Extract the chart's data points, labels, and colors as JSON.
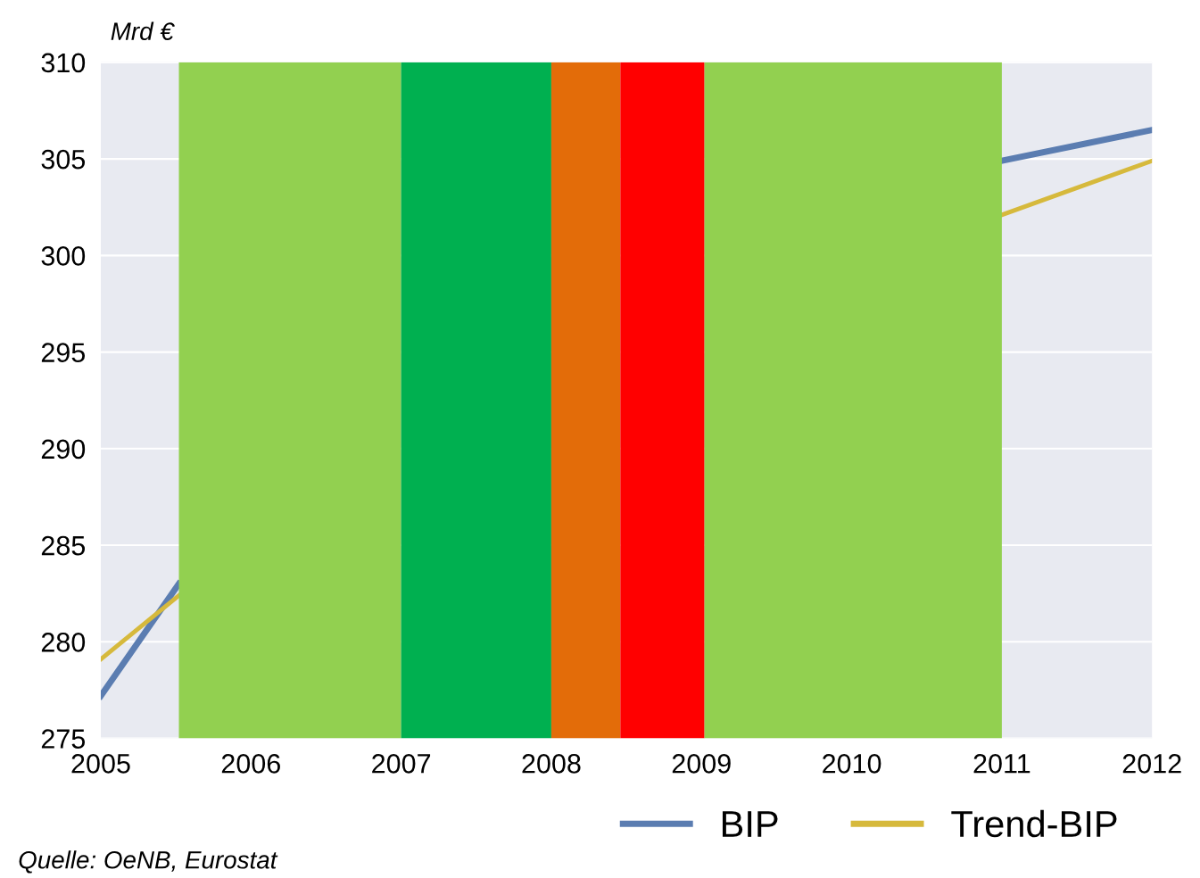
{
  "chart_data": {
    "type": "line",
    "ylabel": "Mrd €",
    "annotations": [
      "Quelle: OeNB, Eurostat"
    ],
    "series": [
      {
        "name": "BIP",
        "color": "#5b7db1",
        "x": [
          2005,
          2005.52,
          2008,
          2011,
          2012
        ],
        "values": [
          277.2,
          283.0,
          null,
          304.9,
          306.5
        ]
      },
      {
        "name": "Trend-BIP",
        "color": "#d6b93c",
        "x": [
          2005,
          2005.52,
          2008,
          2011,
          2012
        ],
        "values": [
          279.1,
          282.4,
          null,
          302.1,
          304.9
        ]
      }
    ],
    "bands": [
      {
        "axis": "x",
        "from": 2005.52,
        "to": 2007.0,
        "color": "#92d050"
      },
      {
        "axis": "x",
        "from": 2007.0,
        "to": 2008.0,
        "color": "#00b050"
      },
      {
        "axis": "x",
        "from": 2008.0,
        "to": 2008.46,
        "color": "#e36c09"
      },
      {
        "axis": "x",
        "from": 2008.46,
        "to": 2009.02,
        "color": "#ff0000"
      },
      {
        "axis": "x",
        "from": 2009.02,
        "to": 2011.0,
        "color": "#92d050"
      }
    ],
    "xlim": [
      2005,
      2012
    ],
    "xticks": [
      2005,
      2006,
      2007,
      2008,
      2009,
      2010,
      2011,
      2012
    ],
    "ylim": [
      275,
      310
    ],
    "yticks": [
      275,
      280,
      285,
      290,
      295,
      300,
      305,
      310
    ],
    "grid": "y",
    "legend": "bottom"
  }
}
